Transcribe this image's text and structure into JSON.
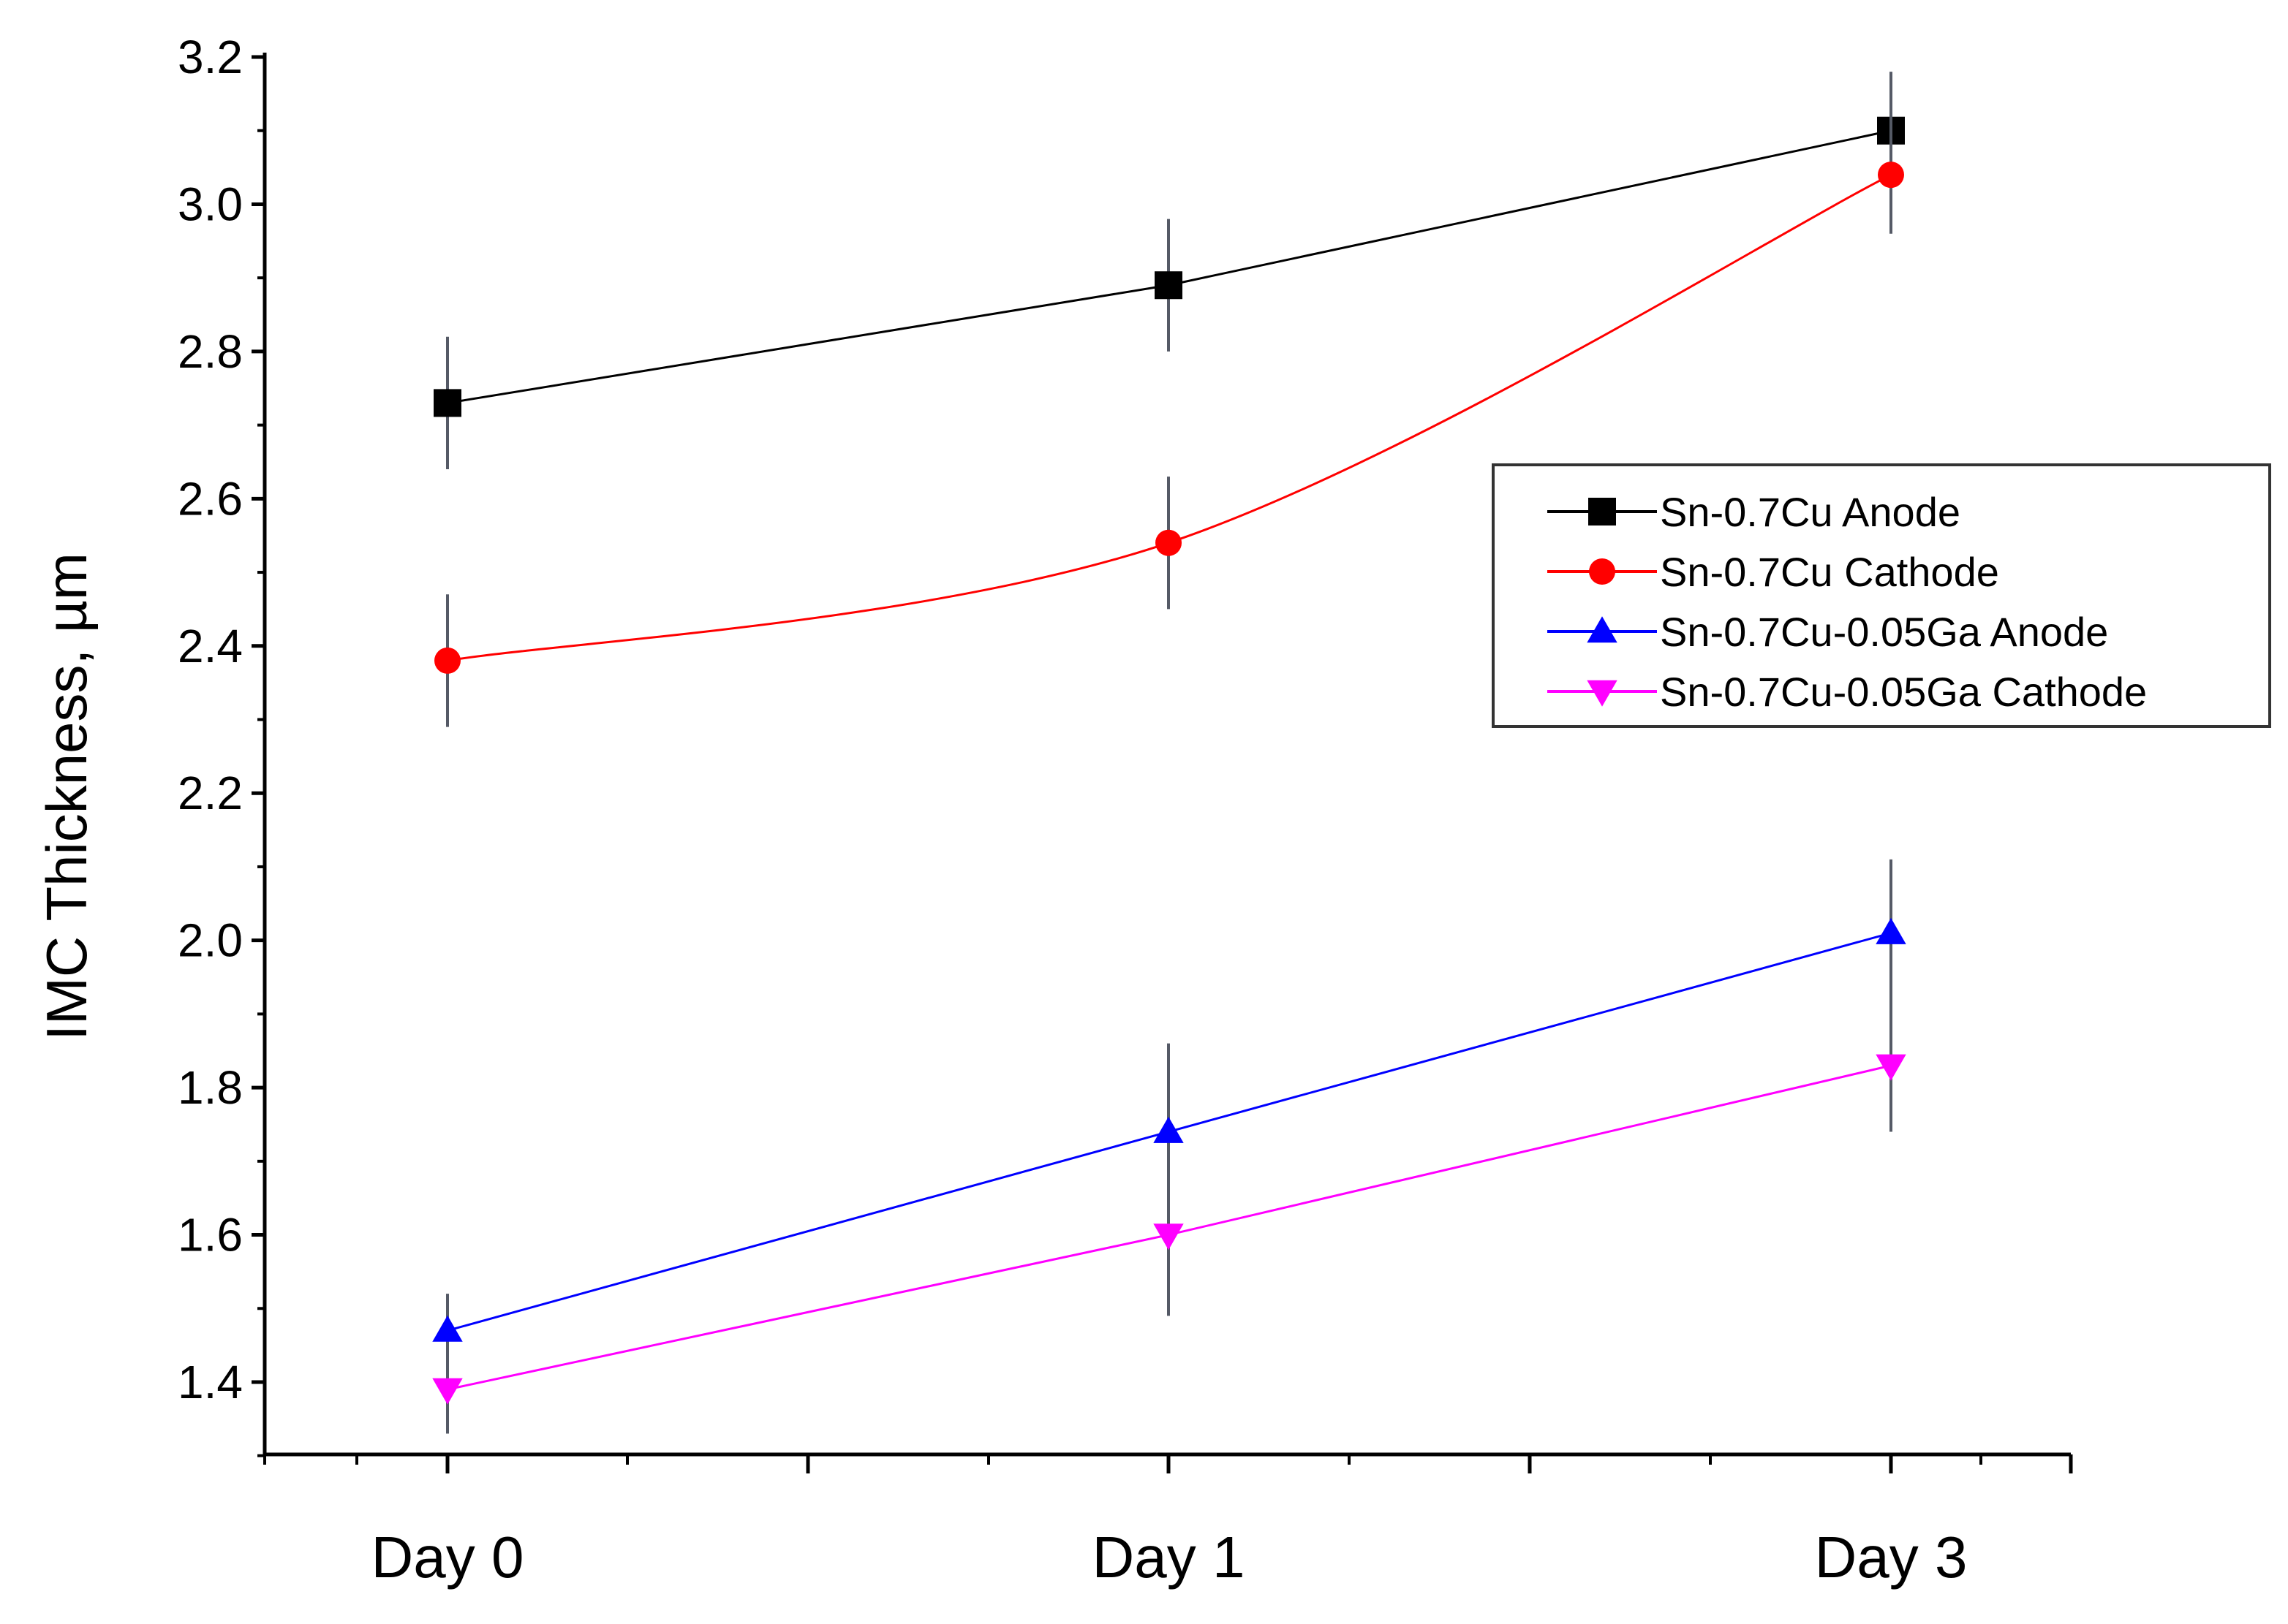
{
  "chart_data": {
    "type": "line",
    "title": "",
    "xlabel": "",
    "ylabel": "IMC Thickness, µm",
    "categories": [
      "Day 0",
      "Day 1",
      "Day 3"
    ],
    "ylim": [
      1.3,
      3.2
    ],
    "yticks": [
      1.4,
      1.6,
      1.8,
      2.0,
      2.2,
      2.4,
      2.6,
      2.8,
      3.0,
      3.2
    ],
    "ytick_labels": [
      "1.4",
      "1.6",
      "1.8",
      "2.0",
      "2.2",
      "2.4",
      "2.6",
      "2.8",
      "3.0",
      "3.2"
    ],
    "grid": false,
    "legend_position": "right",
    "series": [
      {
        "name": "Sn-0.7Cu Anode",
        "color": "#000000",
        "marker": "square",
        "values": [
          2.73,
          2.89,
          3.1
        ],
        "errors": [
          0.09,
          0.09,
          0.08
        ]
      },
      {
        "name": "Sn-0.7Cu Cathode",
        "color": "#ff0000",
        "marker": "circle",
        "values": [
          2.38,
          2.54,
          3.04
        ],
        "errors": [
          0.09,
          0.09,
          0.08
        ]
      },
      {
        "name": "Sn-0.7Cu-0.05Ga Anode",
        "color": "#0000ff",
        "marker": "triangle-up",
        "values": [
          1.47,
          1.74,
          2.01
        ],
        "errors": [
          0.05,
          0.12,
          0.1
        ]
      },
      {
        "name": "Sn-0.7Cu-0.05Ga Cathode",
        "color": "#ff00ff",
        "marker": "triangle-down",
        "values": [
          1.39,
          1.6,
          1.83
        ],
        "errors": [
          0.06,
          0.11,
          0.09
        ]
      }
    ]
  }
}
